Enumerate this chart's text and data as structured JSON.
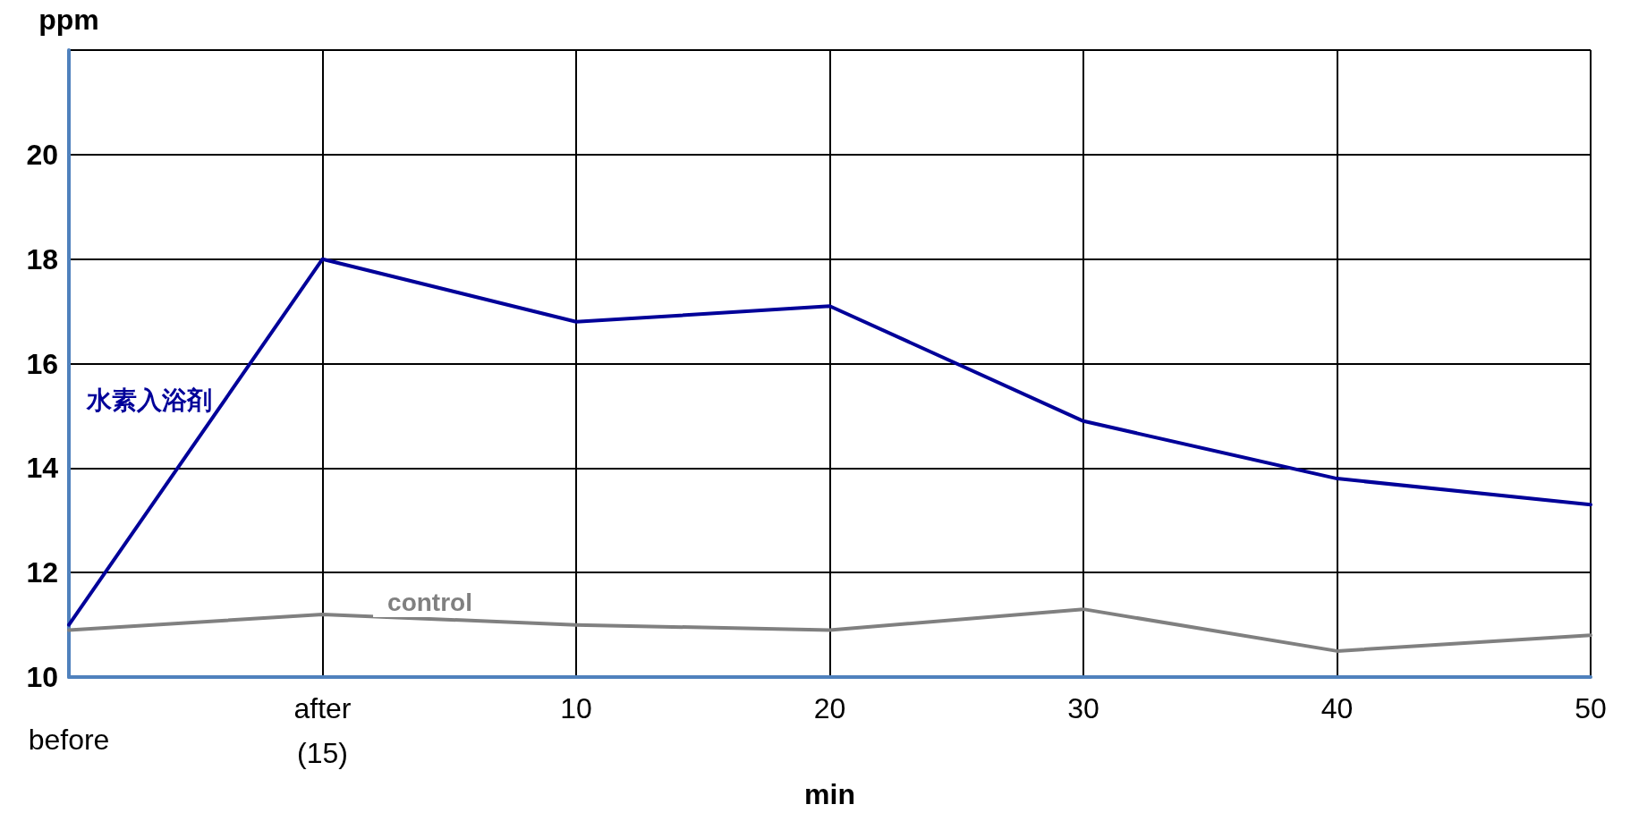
{
  "chart_data": {
    "type": "line",
    "xlabel": "min",
    "ylabel": "ppm",
    "categories": [
      "before",
      "after\n(15)",
      "10",
      "20",
      "30",
      "40",
      "50"
    ],
    "series": [
      {
        "name": "水素入浴剤",
        "color": "#000099",
        "values": [
          11.0,
          18.0,
          16.8,
          17.1,
          14.9,
          13.8,
          13.3
        ]
      },
      {
        "name": "control",
        "color": "#808080",
        "values": [
          10.9,
          11.2,
          11.0,
          10.9,
          11.3,
          10.5,
          10.8
        ]
      }
    ],
    "ylim": [
      10,
      22
    ],
    "yticks": [
      10,
      12,
      14,
      16,
      18,
      20,
      {
        "value": 22,
        "label": null
      }
    ],
    "grid": true,
    "legend": false,
    "marker": "none",
    "line_style": "solid"
  }
}
